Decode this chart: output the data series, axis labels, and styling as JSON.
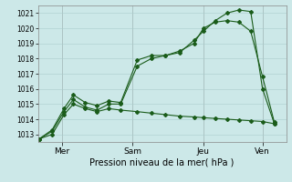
{
  "title": "",
  "xlabel": "Pression niveau de la mer( hPa )",
  "bg_color": "#cce8e8",
  "grid_color": "#aacccc",
  "line_color": "#1a5c1a",
  "ylim": [
    1012.5,
    1021.5
  ],
  "yticks": [
    1013,
    1014,
    1015,
    1016,
    1017,
    1018,
    1019,
    1020,
    1021
  ],
  "day_labels": [
    "Mer",
    "Sam",
    "Jeu",
    "Ven"
  ],
  "day_positions": [
    1.0,
    4.0,
    7.0,
    9.5
  ],
  "xlim": [
    0,
    10.5
  ],
  "series1": {
    "x": [
      0.05,
      0.6,
      1.1,
      1.5,
      2.0,
      2.5,
      3.0,
      3.5,
      4.2,
      4.8,
      5.4,
      6.0,
      6.6,
      7.0,
      7.5,
      8.0,
      8.5,
      9.0,
      9.5,
      10.0
    ],
    "y": [
      1012.7,
      1013.3,
      1014.7,
      1015.6,
      1015.1,
      1014.9,
      1015.2,
      1015.1,
      1017.9,
      1018.2,
      1018.2,
      1018.5,
      1019.0,
      1020.0,
      1020.4,
      1020.5,
      1020.4,
      1019.8,
      1016.8,
      1013.8
    ]
  },
  "series2": {
    "x": [
      0.05,
      0.6,
      1.1,
      1.5,
      2.0,
      2.5,
      3.0,
      3.5,
      4.2,
      4.8,
      5.4,
      6.0,
      6.6,
      7.0,
      7.5,
      8.0,
      8.5,
      9.0,
      9.5,
      10.0
    ],
    "y": [
      1012.7,
      1013.2,
      1014.5,
      1015.3,
      1014.8,
      1014.6,
      1015.0,
      1015.0,
      1017.5,
      1018.0,
      1018.2,
      1018.4,
      1019.2,
      1019.8,
      1020.5,
      1021.0,
      1021.2,
      1021.1,
      1016.0,
      1013.7
    ]
  },
  "series3": {
    "x": [
      0.05,
      0.6,
      1.1,
      1.5,
      2.0,
      2.5,
      3.0,
      3.5,
      4.2,
      4.8,
      5.4,
      6.0,
      6.6,
      7.0,
      7.5,
      8.0,
      8.5,
      9.0,
      9.5,
      10.0
    ],
    "y": [
      1012.7,
      1013.0,
      1014.3,
      1015.0,
      1014.7,
      1014.5,
      1014.7,
      1014.6,
      1014.5,
      1014.4,
      1014.3,
      1014.2,
      1014.15,
      1014.1,
      1014.05,
      1014.0,
      1013.95,
      1013.9,
      1013.85,
      1013.7
    ]
  }
}
